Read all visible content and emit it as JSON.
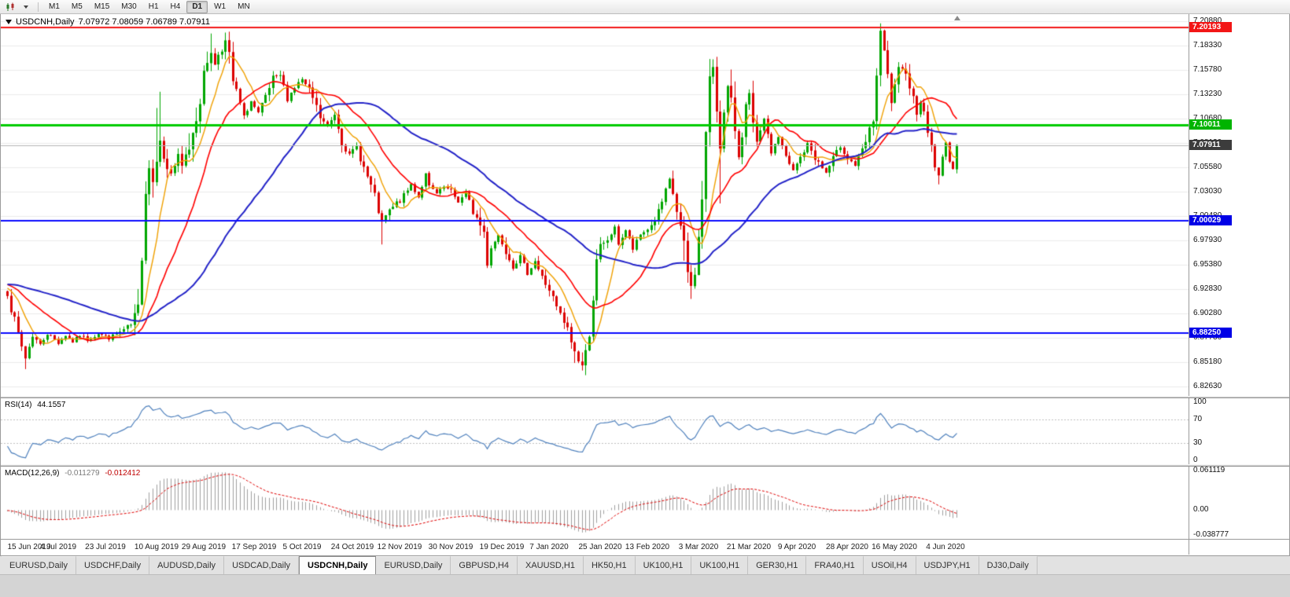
{
  "toolbar": {
    "timeframes": [
      {
        "label": "M1",
        "active": false
      },
      {
        "label": "M5",
        "active": false
      },
      {
        "label": "M15",
        "active": false
      },
      {
        "label": "M30",
        "active": false
      },
      {
        "label": "H1",
        "active": false
      },
      {
        "label": "H4",
        "active": false
      },
      {
        "label": "D1",
        "active": true
      },
      {
        "label": "W1",
        "active": false
      },
      {
        "label": "MN",
        "active": false
      }
    ]
  },
  "chart": {
    "title_symbol": "USDCNH,Daily",
    "title_ohlc": "7.07972 7.08059 7.06789 7.07911",
    "price_axis_labels": [
      "7.20880",
      "7.18330",
      "7.15780",
      "7.13230",
      "7.10680",
      "7.08130",
      "7.05580",
      "7.03030",
      "7.00480",
      "6.97930",
      "6.95380",
      "6.92830",
      "6.90280",
      "6.87730",
      "6.85180",
      "6.82630"
    ],
    "badges": [
      {
        "text": "7.20193",
        "bg": "#f21616"
      },
      {
        "text": "7.10011",
        "bg": "#00b400"
      },
      {
        "text": "7.07911",
        "bg": "#3c3c3c"
      },
      {
        "text": "7.00029",
        "bg": "#0000e6"
      },
      {
        "text": "6.88250",
        "bg": "#0000e6"
      }
    ]
  },
  "rsi": {
    "label": "RSI(14)",
    "value": "44.1557",
    "levels": [
      "100",
      "70",
      "30",
      "0"
    ]
  },
  "macd": {
    "label": "MACD(12,26,9)",
    "value_main": "-0.011279",
    "value_signal": "-0.012412",
    "axis_labels": [
      "0.061119",
      "0.00",
      "-0.038777"
    ]
  },
  "tabs": [
    {
      "label": "EURUSD,Daily",
      "active": false
    },
    {
      "label": "USDCHF,Daily",
      "active": false
    },
    {
      "label": "AUDUSD,Daily",
      "active": false
    },
    {
      "label": "USDCAD,Daily",
      "active": false
    },
    {
      "label": "USDCNH,Daily",
      "active": true
    },
    {
      "label": "EURUSD,Daily",
      "active": false
    },
    {
      "label": "GBPUSD,H4",
      "active": false
    },
    {
      "label": "XAUUSD,H1",
      "active": false
    },
    {
      "label": "HK50,H1",
      "active": false
    },
    {
      "label": "UK100,H1",
      "active": false
    },
    {
      "label": "UK100,H1",
      "active": false
    },
    {
      "label": "GER30,H1",
      "active": false
    },
    {
      "label": "FRA40,H1",
      "active": false
    },
    {
      "label": "USOil,H4",
      "active": false
    },
    {
      "label": "USDJPY,H1",
      "active": false
    },
    {
      "label": "DJ30,Daily",
      "active": false
    }
  ],
  "chart_data": {
    "type": "candlestick",
    "symbol": "USDCNH",
    "timeframe": "Daily",
    "bars_total": 262,
    "noise_seed": 7,
    "y_axis": {
      "min": 6.823,
      "max": 7.213
    },
    "x_axis": {
      "date_labels": [
        "15 Jun 2019",
        "4 Jul 2019",
        "23 Jul 2019",
        "10 Aug 2019",
        "29 Aug 2019",
        "17 Sep 2019",
        "5 Oct 2019",
        "24 Oct 2019",
        "12 Nov 2019",
        "30 Nov 2019",
        "19 Dec 2019",
        "7 Jan 2020",
        "25 Jan 2020",
        "13 Feb 2020",
        "3 Mar 2020",
        "21 Mar 2020",
        "9 Apr 2020",
        "28 Apr 2020",
        "16 May 2020",
        "4 Jun 2020"
      ],
      "label_bar_indexes": [
        0,
        14,
        27,
        41,
        54,
        68,
        81,
        95,
        108,
        122,
        136,
        149,
        163,
        176,
        190,
        204,
        217,
        231,
        244,
        258
      ]
    },
    "price_path_anchors": [
      [
        0,
        6.926
      ],
      [
        2,
        6.893
      ],
      [
        4,
        6.868
      ],
      [
        5,
        6.856
      ],
      [
        7,
        6.88
      ],
      [
        9,
        6.87
      ],
      [
        11,
        6.882
      ],
      [
        14,
        6.872
      ],
      [
        16,
        6.88
      ],
      [
        18,
        6.873
      ],
      [
        20,
        6.88
      ],
      [
        22,
        6.875
      ],
      [
        25,
        6.882
      ],
      [
        28,
        6.877
      ],
      [
        31,
        6.883
      ],
      [
        34,
        6.89
      ],
      [
        36,
        6.905
      ],
      [
        37,
        6.968
      ],
      [
        38,
        7.035
      ],
      [
        39,
        7.058
      ],
      [
        40,
        7.042
      ],
      [
        41,
        7.065
      ],
      [
        42,
        7.088
      ],
      [
        43,
        7.062
      ],
      [
        45,
        7.05
      ],
      [
        47,
        7.065
      ],
      [
        48,
        7.055
      ],
      [
        50,
        7.078
      ],
      [
        52,
        7.112
      ],
      [
        54,
        7.148
      ],
      [
        55,
        7.168
      ],
      [
        56,
        7.18
      ],
      [
        57,
        7.162
      ],
      [
        58,
        7.175
      ],
      [
        60,
        7.186
      ],
      [
        61,
        7.168
      ],
      [
        62,
        7.145
      ],
      [
        64,
        7.122
      ],
      [
        65,
        7.108
      ],
      [
        67,
        7.125
      ],
      [
        69,
        7.112
      ],
      [
        71,
        7.128
      ],
      [
        73,
        7.148
      ],
      [
        75,
        7.152
      ],
      [
        77,
        7.128
      ],
      [
        79,
        7.14
      ],
      [
        81,
        7.148
      ],
      [
        84,
        7.128
      ],
      [
        86,
        7.108
      ],
      [
        88,
        7.098
      ],
      [
        90,
        7.112
      ],
      [
        92,
        7.085
      ],
      [
        94,
        7.068
      ],
      [
        96,
        7.078
      ],
      [
        98,
        7.055
      ],
      [
        100,
        7.035
      ],
      [
        102,
        7.01
      ],
      [
        103,
        6.996
      ],
      [
        104,
        7.005
      ],
      [
        107,
        7.018
      ],
      [
        109,
        7.025
      ],
      [
        111,
        7.038
      ],
      [
        113,
        7.025
      ],
      [
        115,
        7.048
      ],
      [
        116,
        7.035
      ],
      [
        118,
        7.028
      ],
      [
        120,
        7.035
      ],
      [
        122,
        7.03
      ],
      [
        124,
        7.02
      ],
      [
        126,
        7.028
      ],
      [
        128,
        7.01
      ],
      [
        131,
        6.988
      ],
      [
        132,
        6.955
      ],
      [
        133,
        6.972
      ],
      [
        135,
        6.985
      ],
      [
        137,
        6.97
      ],
      [
        139,
        6.952
      ],
      [
        141,
        6.962
      ],
      [
        143,
        6.945
      ],
      [
        145,
        6.958
      ],
      [
        147,
        6.94
      ],
      [
        149,
        6.928
      ],
      [
        151,
        6.908
      ],
      [
        154,
        6.885
      ],
      [
        156,
        6.862
      ],
      [
        158,
        6.848
      ],
      [
        159,
        6.858
      ],
      [
        160,
        6.888
      ],
      [
        161,
        6.922
      ],
      [
        162,
        6.952
      ],
      [
        163,
        6.968
      ],
      [
        165,
        6.98
      ],
      [
        167,
        6.992
      ],
      [
        168,
        6.976
      ],
      [
        170,
        6.99
      ],
      [
        172,
        6.97
      ],
      [
        174,
        6.985
      ],
      [
        177,
        6.995
      ],
      [
        179,
        7.008
      ],
      [
        181,
        7.03
      ],
      [
        182,
        7.042
      ],
      [
        183,
        7.028
      ],
      [
        184,
        7.01
      ],
      [
        185,
        6.992
      ],
      [
        186,
        6.968
      ],
      [
        187,
        6.945
      ],
      [
        188,
        6.93
      ],
      [
        189,
        6.952
      ],
      [
        190,
        6.978
      ],
      [
        191,
        7.025
      ],
      [
        192,
        7.09
      ],
      [
        193,
        7.142
      ],
      [
        194,
        7.162
      ],
      [
        195,
        7.118
      ],
      [
        196,
        7.082
      ],
      [
        197,
        7.112
      ],
      [
        198,
        7.138
      ],
      [
        200,
        7.098
      ],
      [
        201,
        7.068
      ],
      [
        202,
        7.095
      ],
      [
        203,
        7.118
      ],
      [
        204,
        7.128
      ],
      [
        205,
        7.098
      ],
      [
        206,
        7.078
      ],
      [
        207,
        7.092
      ],
      [
        208,
        7.108
      ],
      [
        209,
        7.088
      ],
      [
        210,
        7.072
      ],
      [
        212,
        7.088
      ],
      [
        214,
        7.065
      ],
      [
        216,
        7.052
      ],
      [
        218,
        7.066
      ],
      [
        220,
        7.08
      ],
      [
        223,
        7.06
      ],
      [
        225,
        7.05
      ],
      [
        227,
        7.064
      ],
      [
        229,
        7.078
      ],
      [
        231,
        7.066
      ],
      [
        233,
        7.058
      ],
      [
        235,
        7.072
      ],
      [
        237,
        7.092
      ],
      [
        238,
        7.108
      ],
      [
        239,
        7.152
      ],
      [
        240,
        7.192
      ],
      [
        241,
        7.176
      ],
      [
        242,
        7.148
      ],
      [
        243,
        7.125
      ],
      [
        244,
        7.14
      ],
      [
        245,
        7.154
      ],
      [
        247,
        7.16
      ],
      [
        248,
        7.144
      ],
      [
        249,
        7.128
      ],
      [
        250,
        7.115
      ],
      [
        251,
        7.128
      ],
      [
        252,
        7.11
      ],
      [
        253,
        7.095
      ],
      [
        254,
        7.078
      ],
      [
        255,
        7.058
      ],
      [
        256,
        7.046
      ],
      [
        257,
        7.066
      ],
      [
        258,
        7.084
      ],
      [
        259,
        7.062
      ],
      [
        260,
        7.052
      ],
      [
        261,
        7.07911
      ]
    ],
    "wick_overrides": [
      [
        5,
        "l",
        6.8445
      ],
      [
        41,
        "h",
        7.118
      ],
      [
        42,
        "h",
        7.135
      ],
      [
        56,
        "h",
        7.196
      ],
      [
        60,
        "h",
        7.197
      ],
      [
        103,
        "l",
        6.975
      ],
      [
        158,
        "l",
        6.843
      ],
      [
        186,
        "l",
        6.958
      ],
      [
        188,
        "l",
        6.918
      ],
      [
        194,
        "h",
        7.169
      ],
      [
        196,
        "l",
        7.018
      ],
      [
        240,
        "h",
        7.1995
      ],
      [
        256,
        "l",
        7.038
      ]
    ],
    "volatility_zones": [
      [
        36,
        62,
        1.6
      ],
      [
        156,
        163,
        1.7
      ],
      [
        186,
        206,
        1.9
      ],
      [
        238,
        248,
        1.4
      ]
    ],
    "warmup_anchors": [
      [
        0,
        6.895
      ],
      [
        30,
        6.945
      ],
      [
        59,
        6.928
      ]
    ],
    "moving_averages": [
      {
        "period": 8,
        "color": "#f0a000",
        "width": 1.4
      },
      {
        "period": 20,
        "color": "#ff0000",
        "width": 1.6
      },
      {
        "period": 50,
        "color": "#2323c8",
        "width": 2
      }
    ],
    "horizontal_lines": [
      {
        "price": 7.20193,
        "color": "#f21616",
        "width": 2
      },
      {
        "price": 7.10011,
        "color": "#00cc00",
        "width": 3
      },
      {
        "price": 7.00029,
        "color": "#0a0aff",
        "width": 2
      },
      {
        "price": 6.8825,
        "color": "#0a0aff",
        "width": 2
      }
    ],
    "current_price_line": {
      "price": 7.07911,
      "color": "#b4b4b4"
    },
    "candle_colors": {
      "up": "#00a600",
      "down": "#dc0000"
    },
    "grid_color": "#ebebeb",
    "indicators": {
      "rsi": {
        "period": 14,
        "current": 44.1557,
        "levels": [
          100,
          70,
          30,
          0
        ],
        "y_range": [
          0,
          100
        ],
        "color": "#4f81bd",
        "level_color": "#c0c0c0"
      },
      "macd": {
        "fast": 12,
        "slow": 26,
        "signal": 9,
        "current_main": -0.011279,
        "current_signal": -0.012412,
        "y_range": [
          -0.0388,
          0.0612
        ],
        "hist_color": "#a0a0a0",
        "signal_color": "#e00000"
      }
    }
  }
}
